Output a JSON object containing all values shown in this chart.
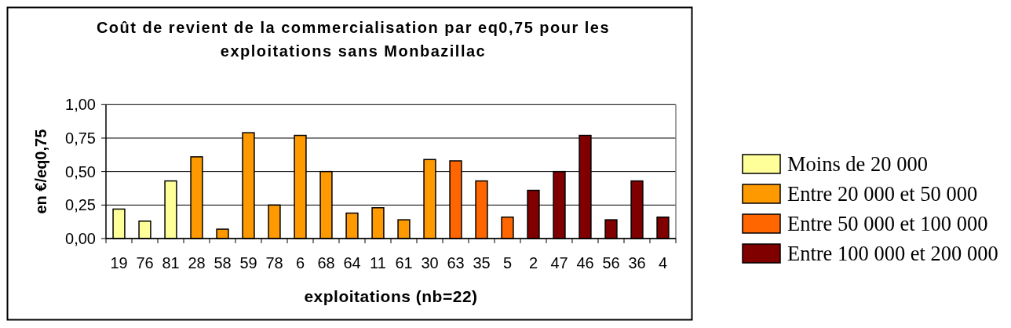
{
  "chart_data": {
    "type": "bar",
    "title": "Coût de revient de la commercialisation par eq0,75 pour les exploitations sans Monbazillac",
    "xlabel": "exploitations (nb=22)",
    "ylabel": "en €/eq0,75",
    "categories": [
      "19",
      "76",
      "81",
      "28",
      "58",
      "59",
      "78",
      "6",
      "68",
      "64",
      "11",
      "61",
      "30",
      "63",
      "35",
      "5",
      "2",
      "47",
      "46",
      "56",
      "36",
      "4"
    ],
    "series": [
      {
        "name": "Moins de 20 000",
        "color": "#ffff99",
        "values": [
          0.22,
          0.13,
          0.43,
          null,
          null,
          null,
          null,
          null,
          null,
          null,
          null,
          null,
          null,
          null,
          null,
          null,
          null,
          null,
          null,
          null,
          null,
          null
        ]
      },
      {
        "name": "Entre 20 000 et 50 000",
        "color": "#ff9900",
        "values": [
          null,
          null,
          null,
          0.61,
          0.07,
          0.79,
          0.25,
          0.77,
          0.5,
          0.19,
          0.23,
          0.14,
          0.59,
          null,
          null,
          null,
          null,
          null,
          null,
          null,
          null,
          null
        ]
      },
      {
        "name": "Entre 50 000 et 100 000",
        "color": "#ff6600",
        "values": [
          null,
          null,
          null,
          null,
          null,
          null,
          null,
          null,
          null,
          null,
          null,
          null,
          null,
          0.58,
          0.43,
          0.16,
          null,
          null,
          null,
          null,
          null,
          null
        ]
      },
      {
        "name": "Entre 100 000 et 200 000",
        "color": "#800000",
        "values": [
          null,
          null,
          null,
          null,
          null,
          null,
          null,
          null,
          null,
          null,
          null,
          null,
          null,
          null,
          null,
          null,
          0.36,
          0.5,
          0.77,
          0.14,
          0.43,
          0.16
        ]
      }
    ],
    "stacked": true,
    "ylim": [
      0,
      1
    ],
    "yticks": [
      {
        "value": 0,
        "label": "0,00"
      },
      {
        "value": 0.25,
        "label": "0,25"
      },
      {
        "value": 0.5,
        "label": "0,50"
      },
      {
        "value": 0.75,
        "label": "0,75"
      },
      {
        "value": 1,
        "label": "1,00"
      }
    ],
    "grid": "y",
    "legend": "right"
  }
}
